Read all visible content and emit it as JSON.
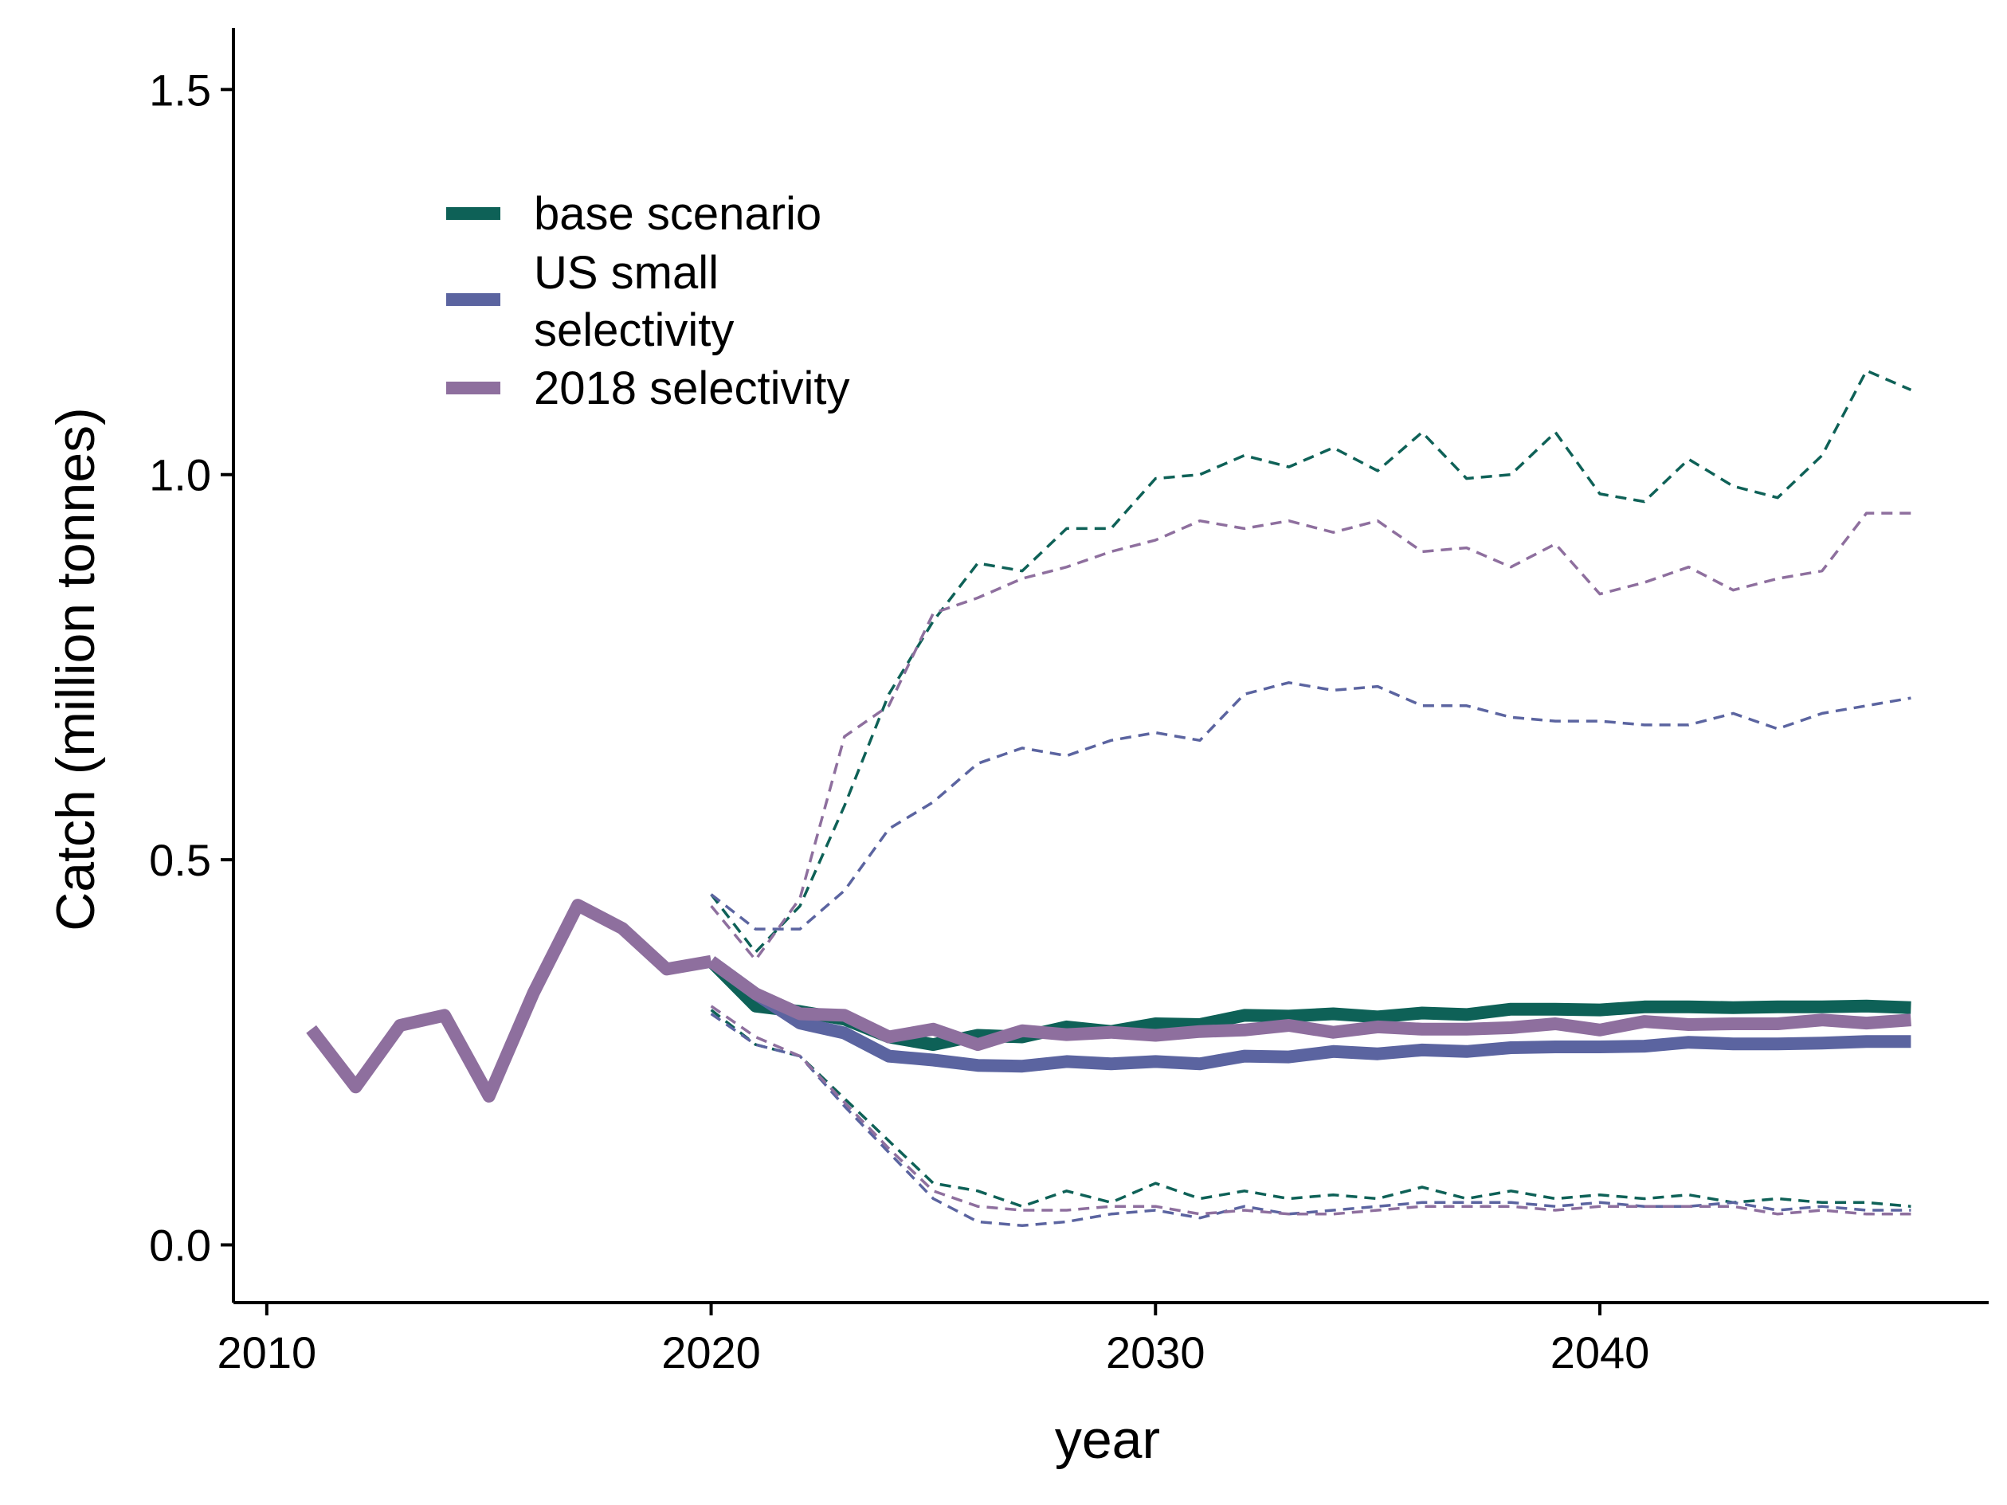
{
  "chart_data": {
    "type": "line",
    "title": "",
    "xlabel": "year",
    "ylabel": "Catch (million tonnes)",
    "xlim": [
      2009.25,
      2048.75
    ],
    "ylim": [
      -0.075,
      1.58
    ],
    "x_ticks": [
      2010,
      2020,
      2030,
      2040
    ],
    "x_tick_labels": [
      "2010",
      "2020",
      "2030",
      "2040"
    ],
    "y_ticks": [
      0.0,
      0.5,
      1.0,
      1.5
    ],
    "y_tick_labels": [
      "0.0",
      "0.5",
      "1.0",
      "1.5"
    ],
    "grid": false,
    "legend_position": "top-left",
    "history": {
      "color": "#8E6F9E",
      "x": [
        2011,
        2012,
        2013,
        2014,
        2015,
        2016,
        2017,
        2018,
        2019,
        2020
      ],
      "values": [
        0.28,
        0.205,
        0.285,
        0.298,
        0.193,
        0.327,
        0.441,
        0.411,
        0.358,
        0.368
      ]
    },
    "proj_x": [
      2020,
      2021,
      2022,
      2023,
      2024,
      2025,
      2026,
      2027,
      2028,
      2029,
      2030,
      2031,
      2032,
      2033,
      2034,
      2035,
      2036,
      2037,
      2038,
      2039,
      2040,
      2041,
      2042,
      2043,
      2044,
      2045,
      2046,
      2047
    ],
    "series": [
      {
        "name": "base scenario",
        "color": "#0E6157",
        "median": [
          0.368,
          0.31,
          0.303,
          0.293,
          0.27,
          0.26,
          0.272,
          0.27,
          0.283,
          0.277,
          0.287,
          0.286,
          0.298,
          0.297,
          0.3,
          0.296,
          0.301,
          0.299,
          0.306,
          0.306,
          0.305,
          0.309,
          0.309,
          0.308,
          0.309,
          0.309,
          0.31,
          0.308
        ],
        "upper": [
          0.455,
          0.38,
          0.44,
          0.57,
          0.715,
          0.81,
          0.885,
          0.875,
          0.93,
          0.93,
          0.995,
          1.0,
          1.025,
          1.01,
          1.035,
          1.005,
          1.055,
          0.995,
          1.0,
          1.055,
          0.975,
          0.965,
          1.02,
          0.985,
          0.97,
          1.025,
          1.135,
          1.11
        ],
        "lower": [
          0.305,
          0.26,
          0.245,
          0.19,
          0.135,
          0.08,
          0.07,
          0.05,
          0.07,
          0.055,
          0.08,
          0.06,
          0.07,
          0.06,
          0.065,
          0.06,
          0.075,
          0.06,
          0.07,
          0.06,
          0.065,
          0.06,
          0.065,
          0.055,
          0.06,
          0.055,
          0.055,
          0.05
        ]
      },
      {
        "name": "US small selectivity",
        "color": "#5B64A0",
        "median": [
          0.368,
          0.326,
          0.288,
          0.275,
          0.245,
          0.24,
          0.233,
          0.232,
          0.238,
          0.235,
          0.238,
          0.235,
          0.245,
          0.244,
          0.251,
          0.248,
          0.253,
          0.251,
          0.256,
          0.257,
          0.257,
          0.258,
          0.263,
          0.261,
          0.261,
          0.262,
          0.264,
          0.264
        ],
        "upper": [
          0.455,
          0.41,
          0.41,
          0.46,
          0.54,
          0.575,
          0.625,
          0.645,
          0.635,
          0.655,
          0.665,
          0.655,
          0.715,
          0.73,
          0.72,
          0.725,
          0.7,
          0.7,
          0.685,
          0.68,
          0.68,
          0.675,
          0.675,
          0.69,
          0.67,
          0.69,
          0.7,
          0.71
        ],
        "lower": [
          0.3,
          0.26,
          0.245,
          0.18,
          0.12,
          0.06,
          0.03,
          0.025,
          0.03,
          0.04,
          0.045,
          0.035,
          0.05,
          0.04,
          0.045,
          0.05,
          0.055,
          0.055,
          0.055,
          0.05,
          0.055,
          0.05,
          0.05,
          0.055,
          0.045,
          0.05,
          0.045,
          0.045
        ]
      },
      {
        "name": "2018 selectivity",
        "color": "#8E6F9E",
        "median": [
          0.368,
          0.326,
          0.3,
          0.298,
          0.27,
          0.28,
          0.26,
          0.278,
          0.273,
          0.276,
          0.272,
          0.277,
          0.279,
          0.285,
          0.276,
          0.283,
          0.28,
          0.28,
          0.282,
          0.287,
          0.279,
          0.29,
          0.286,
          0.287,
          0.287,
          0.292,
          0.288,
          0.292
        ],
        "upper": [
          0.44,
          0.37,
          0.45,
          0.66,
          0.7,
          0.82,
          0.84,
          0.865,
          0.88,
          0.9,
          0.915,
          0.94,
          0.93,
          0.94,
          0.925,
          0.94,
          0.9,
          0.905,
          0.88,
          0.91,
          0.845,
          0.86,
          0.88,
          0.85,
          0.865,
          0.875,
          0.95,
          0.95
        ],
        "lower": [
          0.31,
          0.27,
          0.245,
          0.185,
          0.125,
          0.07,
          0.05,
          0.045,
          0.045,
          0.05,
          0.05,
          0.04,
          0.045,
          0.04,
          0.04,
          0.045,
          0.05,
          0.05,
          0.05,
          0.045,
          0.05,
          0.05,
          0.05,
          0.05,
          0.04,
          0.045,
          0.04,
          0.04
        ]
      }
    ]
  }
}
